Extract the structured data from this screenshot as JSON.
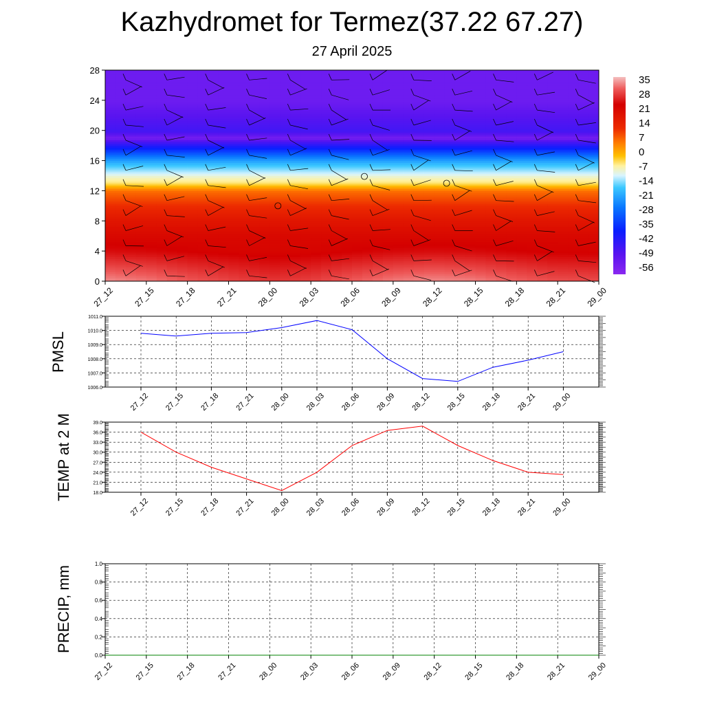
{
  "header": {
    "title": "Kazhydromet for Termez(37.22 67.27)",
    "date": "27 April 2025"
  },
  "colors": {
    "pmsl_line": "#0000ff",
    "temp_line": "#ff0000",
    "precip_line": "#008000",
    "grid": "#000000"
  },
  "chart_data": [
    {
      "type": "heatmap",
      "title": "Kazhydromet for Termez(37.22 67.27)",
      "subtitle": "27 April 2025",
      "x": [
        "27_12",
        "27_15",
        "27_18",
        "27_21",
        "28_00",
        "28_03",
        "28_06",
        "28_09",
        "28_12",
        "28_15",
        "28_18",
        "28_21",
        "29_00"
      ],
      "y_ticks": [
        0,
        4,
        8,
        12,
        16,
        20,
        24,
        28
      ],
      "ylim": [
        0,
        28
      ],
      "colorbar": {
        "labels": [
          "35",
          "28",
          "21",
          "14",
          "7",
          "0",
          "-7",
          "-14",
          "-21",
          "-28",
          "-35",
          "-42",
          "-49",
          "-56"
        ],
        "range": [
          -60,
          38
        ]
      },
      "temperature_profile_levels": [
        0,
        2,
        4,
        6,
        8,
        10,
        12,
        13,
        14,
        16,
        18,
        19,
        20,
        22,
        24,
        28
      ],
      "temperature_profile_values": [
        30,
        25,
        20,
        18,
        15,
        10,
        3,
        -10,
        -15,
        -30,
        -48,
        -58,
        -52,
        -55,
        -57,
        -57
      ],
      "wind_barbs": true
    },
    {
      "type": "line",
      "ylabel": "PMSL",
      "x": [
        "27_12",
        "27_15",
        "27_18",
        "27_21",
        "28_00",
        "28_03",
        "28_06",
        "28_09",
        "28_12",
        "28_15",
        "28_18",
        "28_21",
        "29_00"
      ],
      "y_ticks": [
        "1006.0",
        "1007.0",
        "1008.0",
        "1009.0",
        "1010.0",
        "1011.0"
      ],
      "ylim": [
        1006.0,
        1011.0
      ],
      "series": [
        {
          "values": [
            1009.8,
            1009.6,
            1009.8,
            1009.85,
            1010.2,
            1010.7,
            1010.05,
            1008.0,
            1006.6,
            1006.4,
            1007.4,
            1007.9,
            1008.5
          ]
        }
      ]
    },
    {
      "type": "line",
      "ylabel": "TEMP at 2 M",
      "x": [
        "27_12",
        "27_15",
        "27_18",
        "27_21",
        "28_00",
        "28_03",
        "28_06",
        "28_09",
        "28_12",
        "28_15",
        "28_18",
        "28_21",
        "29_00"
      ],
      "y_ticks": [
        "18.0",
        "21.0",
        "24.0",
        "27.0",
        "30.0",
        "33.0",
        "36.0",
        "39.0"
      ],
      "ylim": [
        18.0,
        39.0
      ],
      "series": [
        {
          "values": [
            36.0,
            30.0,
            25.5,
            22.0,
            18.5,
            24.0,
            32.0,
            36.5,
            37.8,
            32.0,
            27.5,
            24.0,
            23.3
          ]
        }
      ]
    },
    {
      "type": "line",
      "ylabel": "PRECIP, mm",
      "x": [
        "27_12",
        "27_15",
        "27_18",
        "27_21",
        "28_00",
        "28_03",
        "28_06",
        "28_09",
        "28_12",
        "28_15",
        "28_18",
        "28_21",
        "29_00"
      ],
      "y_ticks": [
        "0.0",
        "0.2",
        "0.4",
        "0.6",
        "0.8",
        "1.0"
      ],
      "ylim": [
        0.0,
        1.0
      ],
      "series": [
        {
          "values": [
            0,
            0,
            0,
            0,
            0,
            0,
            0,
            0,
            0,
            0,
            0,
            0,
            0
          ]
        }
      ]
    }
  ]
}
